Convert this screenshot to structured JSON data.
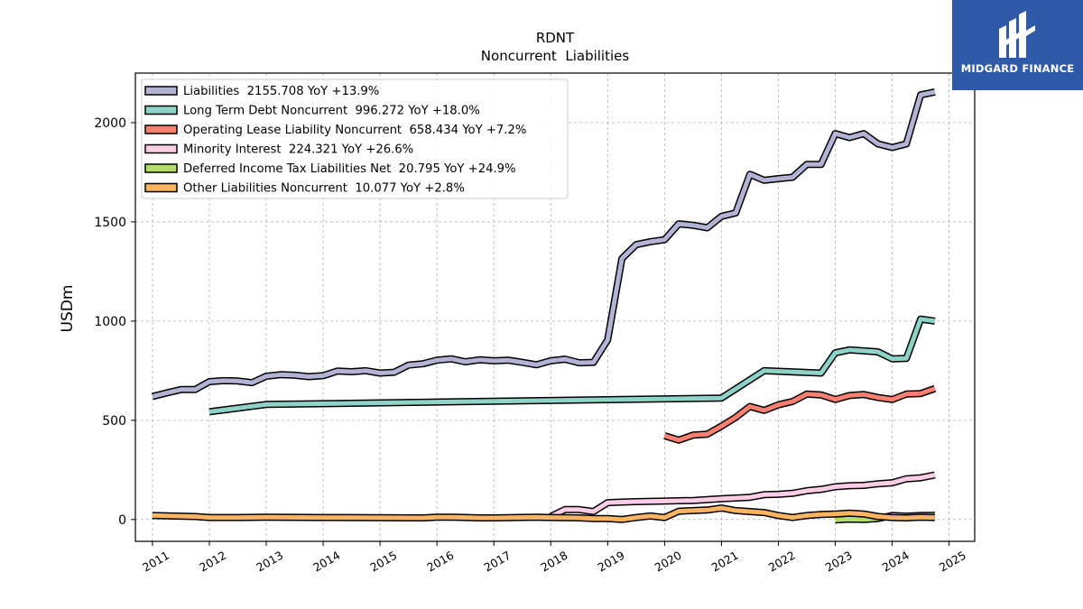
{
  "chart_data": {
    "type": "line",
    "title": "RDNT",
    "subtitle": "Noncurrent  Liabilities",
    "ylabel": "USDm",
    "xlabel": "",
    "ylim": [
      -110,
      2250
    ],
    "xlim": [
      2010.7,
      2025.45
    ],
    "x_ticks": [
      "2011",
      "2012",
      "2013",
      "2014",
      "2015",
      "2016",
      "2017",
      "2018",
      "2019",
      "2020",
      "2021",
      "2022",
      "2023",
      "2024",
      "2025"
    ],
    "y_ticks": [
      0,
      500,
      1000,
      1500,
      2000
    ],
    "grid": true,
    "legend_position": "top-left",
    "series": [
      {
        "name": "Liabilities  2155.708 YoY +13.9%",
        "color": "#b3b3d6",
        "points": [
          [
            2011.0,
            620
          ],
          [
            2011.25,
            638
          ],
          [
            2011.5,
            655
          ],
          [
            2011.75,
            655
          ],
          [
            2012.0,
            695
          ],
          [
            2012.25,
            700
          ],
          [
            2012.5,
            698
          ],
          [
            2012.75,
            690
          ],
          [
            2013.0,
            722
          ],
          [
            2013.25,
            730
          ],
          [
            2013.5,
            727
          ],
          [
            2013.75,
            720
          ],
          [
            2014.0,
            725
          ],
          [
            2014.25,
            748
          ],
          [
            2014.5,
            745
          ],
          [
            2014.75,
            750
          ],
          [
            2015.0,
            738
          ],
          [
            2015.25,
            742
          ],
          [
            2015.5,
            778
          ],
          [
            2015.75,
            785
          ],
          [
            2016.0,
            803
          ],
          [
            2016.25,
            810
          ],
          [
            2016.5,
            795
          ],
          [
            2016.75,
            805
          ],
          [
            2017.0,
            800
          ],
          [
            2017.25,
            803
          ],
          [
            2017.5,
            792
          ],
          [
            2017.75,
            780
          ],
          [
            2018.0,
            800
          ],
          [
            2018.25,
            808
          ],
          [
            2018.5,
            790
          ],
          [
            2018.75,
            792
          ],
          [
            2019.0,
            905
          ],
          [
            2019.25,
            1315
          ],
          [
            2019.5,
            1385
          ],
          [
            2019.75,
            1400
          ],
          [
            2020.0,
            1410
          ],
          [
            2020.25,
            1490
          ],
          [
            2020.5,
            1483
          ],
          [
            2020.75,
            1470
          ],
          [
            2021.0,
            1528
          ],
          [
            2021.25,
            1545
          ],
          [
            2021.5,
            1740
          ],
          [
            2021.75,
            1710
          ],
          [
            2022.0,
            1718
          ],
          [
            2022.25,
            1725
          ],
          [
            2022.5,
            1790
          ],
          [
            2022.75,
            1790
          ],
          [
            2023.0,
            1945
          ],
          [
            2023.25,
            1925
          ],
          [
            2023.5,
            1945
          ],
          [
            2023.75,
            1893
          ],
          [
            2024.0,
            1875
          ],
          [
            2024.25,
            1893
          ],
          [
            2024.5,
            2140
          ],
          [
            2024.75,
            2155
          ]
        ]
      },
      {
        "name": "Long Term Debt Noncurrent  996.272 YoY +18.0%",
        "color": "#8dd3c7",
        "points": [
          [
            2012.0,
            543
          ],
          [
            2013.0,
            580
          ],
          [
            2021.0,
            612
          ],
          [
            2021.75,
            750
          ],
          [
            2022.75,
            738
          ],
          [
            2023.0,
            840
          ],
          [
            2023.25,
            855
          ],
          [
            2023.75,
            845
          ],
          [
            2024.0,
            810
          ],
          [
            2024.25,
            812
          ],
          [
            2024.5,
            1010
          ],
          [
            2024.75,
            1000
          ]
        ]
      },
      {
        "name": "Operating Lease Liability Noncurrent  658.434 YoY +7.2%",
        "color": "#fb8072",
        "points": [
          [
            2020.0,
            422
          ],
          [
            2020.25,
            400
          ],
          [
            2020.5,
            425
          ],
          [
            2020.75,
            430
          ],
          [
            2021.0,
            470
          ],
          [
            2021.25,
            515
          ],
          [
            2021.5,
            570
          ],
          [
            2021.75,
            550
          ],
          [
            2022.0,
            578
          ],
          [
            2022.25,
            595
          ],
          [
            2022.5,
            632
          ],
          [
            2022.75,
            628
          ],
          [
            2023.0,
            605
          ],
          [
            2023.25,
            625
          ],
          [
            2023.5,
            630
          ],
          [
            2023.75,
            615
          ],
          [
            2024.0,
            605
          ],
          [
            2024.25,
            632
          ],
          [
            2024.5,
            635
          ],
          [
            2024.75,
            660
          ]
        ]
      },
      {
        "name": "Minority Interest  224.321 YoY +26.6%",
        "color": "#fccde5",
        "points": [
          [
            2018.0,
            15
          ],
          [
            2018.25,
            50
          ],
          [
            2018.5,
            50
          ],
          [
            2018.75,
            40
          ],
          [
            2019.0,
            85
          ],
          [
            2019.25,
            88
          ],
          [
            2019.5,
            90
          ],
          [
            2020.0,
            93
          ],
          [
            2020.5,
            96
          ],
          [
            2021.0,
            105
          ],
          [
            2021.5,
            112
          ],
          [
            2021.75,
            125
          ],
          [
            2022.0,
            127
          ],
          [
            2022.25,
            132
          ],
          [
            2022.5,
            145
          ],
          [
            2022.75,
            152
          ],
          [
            2023.0,
            165
          ],
          [
            2023.25,
            170
          ],
          [
            2023.5,
            172
          ],
          [
            2023.75,
            180
          ],
          [
            2024.0,
            185
          ],
          [
            2024.25,
            205
          ],
          [
            2024.5,
            210
          ],
          [
            2024.75,
            224
          ]
        ]
      },
      {
        "name": "Deferred Income Tax Liabilities Net  20.795 YoY +24.9%",
        "color": "#b3de69",
        "points": [
          [
            2023.0,
            -2
          ],
          [
            2023.25,
            2
          ],
          [
            2023.5,
            0
          ],
          [
            2023.75,
            5
          ],
          [
            2024.0,
            20
          ],
          [
            2024.25,
            17
          ],
          [
            2024.5,
            20
          ],
          [
            2024.75,
            21
          ]
        ]
      },
      {
        "name": "Other Liabilities Noncurrent  10.077 YoY +2.8%",
        "color": "#fdb462",
        "points": [
          [
            2011.0,
            20
          ],
          [
            2011.75,
            15
          ],
          [
            2012.0,
            10
          ],
          [
            2012.5,
            10
          ],
          [
            2013.0,
            12
          ],
          [
            2014.0,
            10
          ],
          [
            2015.75,
            8
          ],
          [
            2016.0,
            12
          ],
          [
            2016.25,
            12
          ],
          [
            2016.75,
            8
          ],
          [
            2017.0,
            8
          ],
          [
            2017.75,
            12
          ],
          [
            2018.0,
            10
          ],
          [
            2018.5,
            8
          ],
          [
            2018.75,
            5
          ],
          [
            2019.0,
            5
          ],
          [
            2019.25,
            0
          ],
          [
            2019.5,
            10
          ],
          [
            2019.75,
            18
          ],
          [
            2020.0,
            10
          ],
          [
            2020.25,
            42
          ],
          [
            2020.5,
            45
          ],
          [
            2020.75,
            48
          ],
          [
            2021.0,
            58
          ],
          [
            2021.25,
            45
          ],
          [
            2021.75,
            35
          ],
          [
            2022.0,
            20
          ],
          [
            2022.25,
            10
          ],
          [
            2022.5,
            20
          ],
          [
            2022.75,
            25
          ],
          [
            2023.0,
            28
          ],
          [
            2023.25,
            32
          ],
          [
            2023.5,
            28
          ],
          [
            2023.75,
            15
          ],
          [
            2024.0,
            10
          ],
          [
            2024.25,
            8
          ],
          [
            2024.5,
            12
          ],
          [
            2024.75,
            10
          ]
        ]
      }
    ]
  },
  "logo": {
    "text": "MIDGARD FINANCE",
    "color": "#2f5aa8"
  }
}
